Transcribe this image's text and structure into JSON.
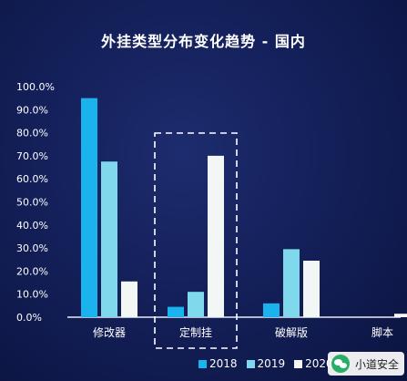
{
  "chart_data": {
    "type": "bar",
    "title": "外挂类型分布变化趋势 - 国内",
    "categories": [
      "修改器",
      "定制挂",
      "破解版",
      "脚本"
    ],
    "series": [
      {
        "name": "2018",
        "values": [
          95.0,
          4.5,
          6.0,
          0.0
        ],
        "color": "#1ab3ee"
      },
      {
        "name": "2019",
        "values": [
          67.5,
          11.0,
          29.5,
          0.0
        ],
        "color": "#7fd8ec"
      },
      {
        "name": "2020",
        "values": [
          15.5,
          70.0,
          24.5,
          1.5
        ],
        "color": "#f2f6f5"
      }
    ],
    "ylim": [
      0,
      100
    ],
    "yticks": [
      "0.0%",
      "10.0%",
      "20.0%",
      "30.0%",
      "40.0%",
      "50.0%",
      "60.0%",
      "70.0%",
      "80.0%",
      "90.0%",
      "100.0%"
    ],
    "legend": "bottom",
    "highlight_category": "定制挂"
  },
  "watermark": {
    "text": "小道安全"
  }
}
